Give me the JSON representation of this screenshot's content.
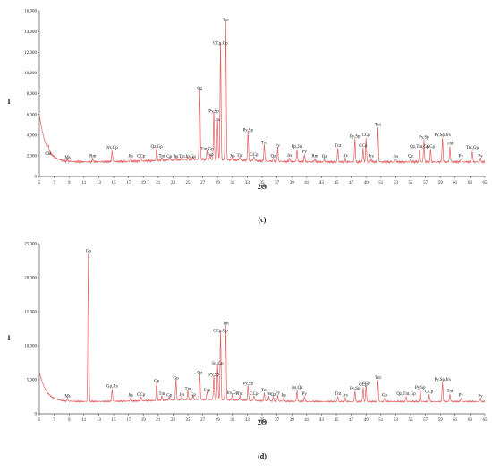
{
  "chart_data": [
    {
      "panel_label": "(c)",
      "type": "line",
      "xlabel": "2Θ",
      "ylabel": "I",
      "xlim": [
        5,
        65
      ],
      "ylim": [
        0,
        16000
      ],
      "x_ticks": [
        "5",
        "7",
        "9",
        "11",
        "13",
        "15",
        "17",
        "19",
        "21",
        "23",
        "25",
        "27",
        "29",
        "31",
        "33",
        "35",
        "37",
        "39",
        "41",
        "43",
        "45",
        "47",
        "49",
        "51",
        "53",
        "55",
        "57",
        "59",
        "61",
        "63",
        "65"
      ],
      "y_ticks": [
        "0",
        "2,000",
        "4,000",
        "6,000",
        "8,000",
        "10,000",
        "12,000",
        "14,000",
        "16,000"
      ],
      "baseline": 1400,
      "series": [
        {
          "color": "#e06060"
        }
      ],
      "peaks": [
        {
          "label": "Chl",
          "x": 6.2,
          "y": 1900
        },
        {
          "label": "Ms",
          "x": 8.8,
          "y": 1550
        },
        {
          "label": "Rm",
          "x": 12.2,
          "y": 1700
        },
        {
          "label": "Jrs,Gp",
          "x": 14.8,
          "y": 2500
        },
        {
          "label": "Jrs",
          "x": 17.3,
          "y": 1700
        },
        {
          "label": "CCp",
          "x": 18.7,
          "y": 1700
        },
        {
          "label": "Qz,Gp",
          "x": 20.8,
          "y": 2600
        },
        {
          "label": "Tnt",
          "x": 21.5,
          "y": 1700
        },
        {
          "label": "Gp",
          "x": 22.5,
          "y": 1650
        },
        {
          "label": "Jrs",
          "x": 23.4,
          "y": 1650
        },
        {
          "label": "Tnt",
          "x": 24.2,
          "y": 1650
        },
        {
          "label": "Jrs",
          "x": 25.0,
          "y": 1650
        },
        {
          "label": "Gp",
          "x": 25.7,
          "y": 1650
        },
        {
          "label": "Qz",
          "x": 26.6,
          "y": 8200
        },
        {
          "label": "Tnt,Gp",
          "x": 27.6,
          "y": 2400
        },
        {
          "label": "Fsp",
          "x": 28.0,
          "y": 1800
        },
        {
          "label": "Py,Sp",
          "x": 28.5,
          "y": 6000
        },
        {
          "label": "Jrs",
          "x": 29.0,
          "y": 5200
        },
        {
          "label": "CCp,Gp",
          "x": 29.4,
          "y": 12600
        },
        {
          "label": "Tnt",
          "x": 30.1,
          "y": 14800
        },
        {
          "label": "Jrs",
          "x": 31.0,
          "y": 1700
        },
        {
          "label": "Tnt",
          "x": 32.0,
          "y": 1750
        },
        {
          "label": "Py,Sp",
          "x": 33.1,
          "y": 4200
        },
        {
          "label": "CCp",
          "x": 33.9,
          "y": 1800
        },
        {
          "label": "Tnt",
          "x": 35.3,
          "y": 3000
        },
        {
          "label": "Qz",
          "x": 36.5,
          "y": 1700
        },
        {
          "label": "Py",
          "x": 37.1,
          "y": 2700
        },
        {
          "label": "Jrs",
          "x": 38.7,
          "y": 1750
        },
        {
          "label": "Qz,Jrs",
          "x": 39.7,
          "y": 2600
        },
        {
          "label": "Py",
          "x": 40.7,
          "y": 2100
        },
        {
          "label": "Rm",
          "x": 42.1,
          "y": 1700
        },
        {
          "label": "Qz",
          "x": 43.4,
          "y": 1650
        },
        {
          "label": "Tnt",
          "x": 45.2,
          "y": 2700
        },
        {
          "label": "Jrs",
          "x": 46.2,
          "y": 1750
        },
        {
          "label": "Py,Sp",
          "x": 47.5,
          "y": 3600
        },
        {
          "label": "CCp",
          "x": 48.6,
          "y": 2700
        },
        {
          "label": "CCp",
          "x": 49.0,
          "y": 3700
        },
        {
          "label": "Jrs",
          "x": 49.7,
          "y": 1700
        },
        {
          "label": "Tnt",
          "x": 50.6,
          "y": 4700
        },
        {
          "label": "Jrs",
          "x": 53.0,
          "y": 1650
        },
        {
          "label": "Qz",
          "x": 55.0,
          "y": 1700
        },
        {
          "label": "Qz,Tnt,Gp",
          "x": 56.2,
          "y": 2600
        },
        {
          "label": "Py,Sp",
          "x": 56.8,
          "y": 3500
        },
        {
          "label": "CCp",
          "x": 57.7,
          "y": 2600
        },
        {
          "label": "Py,Sp,Jrs",
          "x": 59.3,
          "y": 3700
        },
        {
          "label": "Tnt",
          "x": 60.3,
          "y": 2900
        },
        {
          "label": "Py",
          "x": 61.8,
          "y": 1700
        },
        {
          "label": "Tnt,Gp",
          "x": 63.3,
          "y": 2500
        },
        {
          "label": "Py",
          "x": 64.4,
          "y": 1700
        }
      ]
    },
    {
      "panel_label": "(d)",
      "type": "line",
      "xlabel": "2Θ",
      "ylabel": "I",
      "xlim": [
        5,
        65
      ],
      "ylim": [
        0,
        25000
      ],
      "x_ticks": [
        "5",
        "7",
        "9",
        "11",
        "13",
        "15",
        "17",
        "19",
        "21",
        "23",
        "25",
        "27",
        "29",
        "31",
        "33",
        "35",
        "37",
        "39",
        "41",
        "43",
        "45",
        "47",
        "49",
        "51",
        "53",
        "55",
        "57",
        "59",
        "61",
        "63",
        "65"
      ],
      "y_ticks": [
        "0",
        "5,000",
        "10,000",
        "15,000",
        "20,000",
        "25,000"
      ],
      "baseline": 1800,
      "series": [
        {
          "color": "#e06060"
        }
      ],
      "peaks": [
        {
          "label": "Ms",
          "x": 8.8,
          "y": 2200
        },
        {
          "label": "Gp",
          "x": 11.6,
          "y": 23500
        },
        {
          "label": "Gp,Jrs",
          "x": 14.8,
          "y": 3600
        },
        {
          "label": "Jrs",
          "x": 17.3,
          "y": 2300
        },
        {
          "label": "CCp",
          "x": 18.7,
          "y": 2400
        },
        {
          "label": "Gp",
          "x": 20.8,
          "y": 4400
        },
        {
          "label": "Tnt",
          "x": 21.5,
          "y": 2500
        },
        {
          "label": "Gp",
          "x": 22.5,
          "y": 2300
        },
        {
          "label": "Gp",
          "x": 23.4,
          "y": 4800
        },
        {
          "label": "Jrs",
          "x": 24.2,
          "y": 2400
        },
        {
          "label": "Tnt",
          "x": 25.0,
          "y": 3200
        },
        {
          "label": "Gp",
          "x": 25.7,
          "y": 2400
        },
        {
          "label": "Qz",
          "x": 26.6,
          "y": 5600
        },
        {
          "label": "Fsp",
          "x": 27.6,
          "y": 3000
        },
        {
          "label": "Py,Sp",
          "x": 28.5,
          "y": 5300
        },
        {
          "label": "Jrs,Gp",
          "x": 29.0,
          "y": 7000
        },
        {
          "label": "CCp,Gp",
          "x": 29.4,
          "y": 11800
        },
        {
          "label": "Tnt",
          "x": 30.1,
          "y": 12800
        },
        {
          "label": "Jrs,Gp",
          "x": 31.0,
          "y": 2600
        },
        {
          "label": "Tnt",
          "x": 32.0,
          "y": 2500
        },
        {
          "label": "Py,Sp",
          "x": 33.1,
          "y": 4000
        },
        {
          "label": "CCp",
          "x": 33.9,
          "y": 2500
        },
        {
          "label": "Tnt",
          "x": 35.3,
          "y": 3000
        },
        {
          "label": "Jrs",
          "x": 35.9,
          "y": 2500
        },
        {
          "label": "Qz",
          "x": 36.5,
          "y": 2400
        },
        {
          "label": "Py",
          "x": 37.1,
          "y": 2600
        },
        {
          "label": "Jrs",
          "x": 37.9,
          "y": 2300
        },
        {
          "label": "Jrs,Qz",
          "x": 39.7,
          "y": 3400
        },
        {
          "label": "Py",
          "x": 40.7,
          "y": 2500
        },
        {
          "label": "Tnt",
          "x": 45.2,
          "y": 2500
        },
        {
          "label": "Jrs",
          "x": 46.2,
          "y": 2300
        },
        {
          "label": "Py,Sp",
          "x": 47.5,
          "y": 3300
        },
        {
          "label": "CCp",
          "x": 48.6,
          "y": 3800
        },
        {
          "label": "CCp",
          "x": 49.0,
          "y": 4100
        },
        {
          "label": "Tnt",
          "x": 50.6,
          "y": 4900
        },
        {
          "label": "Gp",
          "x": 51.5,
          "y": 2300
        },
        {
          "label": "Qz,Tnt,Gp",
          "x": 54.4,
          "y": 2500
        },
        {
          "label": "Py,Sp",
          "x": 56.3,
          "y": 3400
        },
        {
          "label": "CCp",
          "x": 57.5,
          "y": 2800
        },
        {
          "label": "Py,Sp,Jrs",
          "x": 59.3,
          "y": 4600
        },
        {
          "label": "Tnt",
          "x": 60.3,
          "y": 2900
        },
        {
          "label": "Py",
          "x": 61.8,
          "y": 2300
        },
        {
          "label": "Py",
          "x": 64.4,
          "y": 2200
        }
      ]
    }
  ]
}
